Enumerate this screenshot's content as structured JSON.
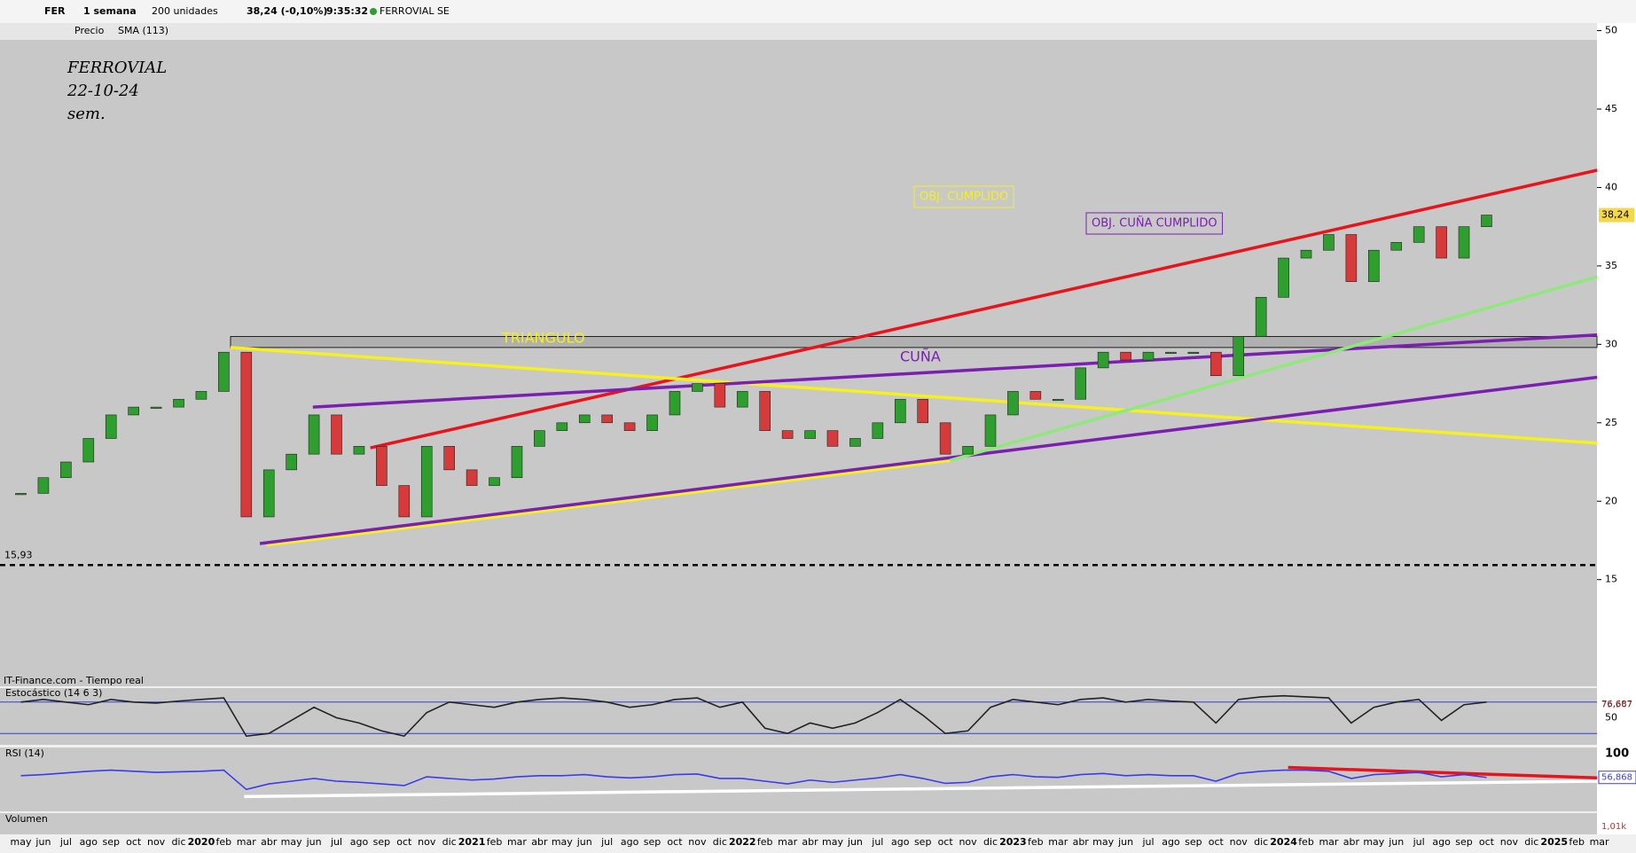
{
  "toolbar": {
    "symbol": "FER",
    "period": "1 semana",
    "units": "200 unidades",
    "quote": "38,24 (-0,10%)",
    "time": "9:35:32",
    "name": "FERROVIAL SE",
    "legend_price": "Precio",
    "legend_sma": "SMA (113)"
  },
  "source": "IT-Finance.com - Tiempo real",
  "chart_data": {
    "type": "candlestick",
    "annotations": {
      "title": "FERROVIAL",
      "date": "22-10-24",
      "frame": "sem.",
      "triangle": "TRIANGULO",
      "wedge": "CUÑA",
      "target1": "OBJ. CUMPLIDO",
      "target2": "OBJ. CUÑA CUMPLIDO"
    },
    "categories": [
      "may",
      "jun",
      "jul",
      "ago",
      "sep",
      "oct",
      "nov",
      "dic",
      "2020",
      "feb",
      "mar",
      "abr",
      "may",
      "jun",
      "jul",
      "ago",
      "sep",
      "oct",
      "nov",
      "dic",
      "2021",
      "feb",
      "mar",
      "abr",
      "may",
      "jun",
      "jul",
      "ago",
      "sep",
      "oct",
      "nov",
      "dic",
      "2022",
      "feb",
      "mar",
      "abr",
      "may",
      "jun",
      "jul",
      "ago",
      "sep",
      "oct",
      "nov",
      "dic",
      "2023",
      "feb",
      "mar",
      "abr",
      "may",
      "jun",
      "jul",
      "ago",
      "sep",
      "oct",
      "nov",
      "dic",
      "2024",
      "feb",
      "mar",
      "abr",
      "may",
      "jun",
      "jul",
      "ago",
      "sep",
      "oct",
      "nov",
      "dic",
      "2025",
      "feb",
      "mar"
    ],
    "values": [
      20.5,
      21.5,
      22.5,
      24,
      25.5,
      26,
      26,
      26.5,
      27,
      29.5,
      19,
      22,
      23,
      25.5,
      23,
      23.5,
      21,
      19,
      23.5,
      22,
      21,
      21.5,
      23.5,
      24.5,
      25,
      25.5,
      25,
      24.5,
      25.5,
      27,
      27.5,
      26,
      27,
      24.5,
      24,
      24.5,
      23.5,
      24,
      25,
      26.5,
      25,
      23,
      23.5,
      25.5,
      27,
      26.5,
      26.5,
      28.5,
      29.5,
      29,
      29.5,
      29.5,
      29.5,
      28,
      30.5,
      33,
      35.5,
      36,
      37,
      34,
      36,
      36.5,
      37.5,
      35.5,
      37.5,
      38.24,
      null,
      null,
      null,
      null,
      null
    ],
    "last": {
      "value": 38.24,
      "label": "38,24"
    },
    "support": {
      "value": 15.93,
      "label": "15,93"
    },
    "zone": [
      29.8,
      30.5
    ],
    "trendlines": [
      {
        "name": "red",
        "color": "#e8141c",
        "points": [
          [
            15.5,
            23.4
          ],
          [
            69.9,
            41.1
          ]
        ]
      },
      {
        "name": "yellow-top",
        "color": "#f5f01e",
        "points": [
          [
            9.3,
            29.8
          ],
          [
            69.9,
            23.7
          ]
        ]
      },
      {
        "name": "yellow-bottom",
        "color": "#f5f01e",
        "points": [
          [
            10.9,
            17.2
          ],
          [
            41.2,
            22.6
          ]
        ]
      },
      {
        "name": "purple-top",
        "color": "#7a1fb0",
        "points": [
          [
            12.95,
            26
          ],
          [
            69.9,
            30.6
          ]
        ]
      },
      {
        "name": "purple-bottom",
        "color": "#7a1fb0",
        "points": [
          [
            10.6,
            17.3
          ],
          [
            69.9,
            27.9
          ]
        ]
      },
      {
        "name": "green",
        "color": "#8fe87a",
        "points": [
          [
            41.2,
            22.6
          ],
          [
            69.9,
            34.3
          ]
        ]
      }
    ],
    "ylim": [
      8.2,
      50.2
    ],
    "yticks": [
      15,
      20,
      25,
      30,
      35,
      40,
      45,
      50
    ],
    "stochastic": {
      "name": "Estocástico (14 6 3)",
      "ylim": [
        0,
        100
      ],
      "yticks": [
        50
      ],
      "levels": [
        20,
        80
      ],
      "values": [
        80,
        85,
        80,
        75,
        85,
        80,
        78,
        82,
        85,
        88,
        15,
        20,
        45,
        70,
        50,
        40,
        25,
        15,
        60,
        80,
        75,
        70,
        80,
        85,
        88,
        85,
        80,
        70,
        75,
        85,
        88,
        70,
        80,
        30,
        20,
        40,
        30,
        40,
        60,
        85,
        55,
        20,
        25,
        70,
        85,
        80,
        75,
        85,
        88,
        80,
        85,
        82,
        80,
        40,
        85,
        90,
        92,
        90,
        88,
        40,
        70,
        80,
        85,
        45,
        75,
        80,
        null,
        null,
        null,
        null,
        null
      ],
      "last_k": {
        "value": 76.687,
        "label": "76,687"
      },
      "last_d": {
        "value": 75.567,
        "label": "75,567"
      }
    },
    "rsi": {
      "name": "RSI (14)",
      "ylim": [
        0,
        100
      ],
      "yticks": [
        100
      ],
      "values": [
        60,
        62,
        65,
        68,
        70,
        68,
        66,
        67,
        68,
        70,
        35,
        45,
        50,
        55,
        50,
        48,
        45,
        42,
        58,
        55,
        52,
        54,
        58,
        60,
        60,
        62,
        58,
        56,
        58,
        62,
        63,
        55,
        55,
        50,
        45,
        52,
        48,
        52,
        56,
        62,
        55,
        46,
        48,
        58,
        62,
        58,
        57,
        62,
        64,
        60,
        62,
        60,
        60,
        50,
        64,
        68,
        70,
        70,
        68,
        55,
        62,
        64,
        66,
        58,
        62,
        56.868,
        null,
        null,
        null,
        null,
        null
      ],
      "last": {
        "value": 56.868,
        "label": "56,868"
      },
      "trendlines": [
        {
          "color": "#e8141c",
          "points": [
            [
              56.2,
              75
            ],
            [
              69.9,
              56
            ]
          ]
        },
        {
          "color": "#ffffff",
          "points": [
            [
              9.9,
              22
            ],
            [
              69.9,
              50
            ]
          ]
        }
      ]
    },
    "volume": {
      "name": "Volumen",
      "last_label": "1,01k"
    }
  }
}
